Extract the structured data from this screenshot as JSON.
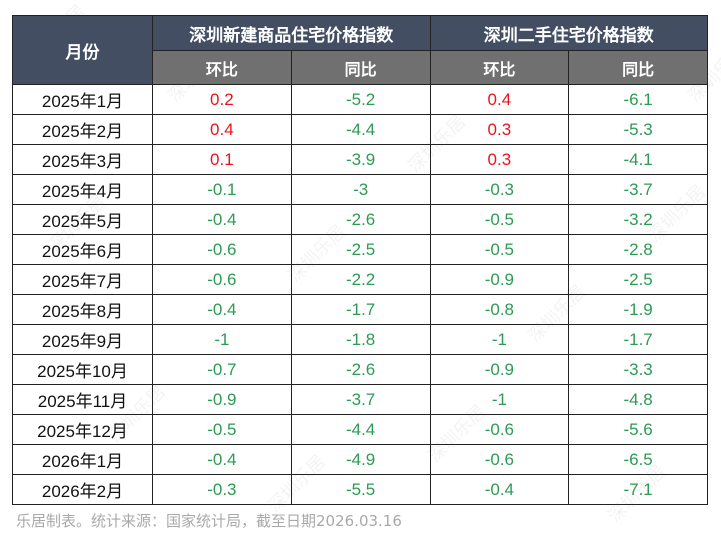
{
  "table": {
    "month_header": "月份",
    "groups": [
      {
        "title": "深圳新建商品住宅价格指数",
        "sub": [
          "环比",
          "同比"
        ]
      },
      {
        "title": "深圳二手住宅价格指数",
        "sub": [
          "环比",
          "同比"
        ]
      }
    ],
    "rows": [
      {
        "month": "2025年1月",
        "new_mom": "0.2",
        "new_yoy": "-5.2",
        "used_mom": "0.4",
        "used_yoy": "-6.1"
      },
      {
        "month": "2025年2月",
        "new_mom": "0.4",
        "new_yoy": "-4.4",
        "used_mom": "0.3",
        "used_yoy": "-5.3"
      },
      {
        "month": "2025年3月",
        "new_mom": "0.1",
        "new_yoy": "-3.9",
        "used_mom": "0.3",
        "used_yoy": "-4.1"
      },
      {
        "month": "2025年4月",
        "new_mom": "-0.1",
        "new_yoy": "-3",
        "used_mom": "-0.3",
        "used_yoy": "-3.7"
      },
      {
        "month": "2025年5月",
        "new_mom": "-0.4",
        "new_yoy": "-2.6",
        "used_mom": "-0.5",
        "used_yoy": "-3.2"
      },
      {
        "month": "2025年6月",
        "new_mom": "-0.6",
        "new_yoy": "-2.5",
        "used_mom": "-0.5",
        "used_yoy": "-2.8"
      },
      {
        "month": "2025年7月",
        "new_mom": "-0.6",
        "new_yoy": "-2.2",
        "used_mom": "-0.9",
        "used_yoy": "-2.5"
      },
      {
        "month": "2025年8月",
        "new_mom": "-0.4",
        "new_yoy": "-1.7",
        "used_mom": "-0.8",
        "used_yoy": "-1.9"
      },
      {
        "month": "2025年9月",
        "new_mom": "-1",
        "new_yoy": "-1.8",
        "used_mom": "-1",
        "used_yoy": "-1.7"
      },
      {
        "month": "2025年10月",
        "new_mom": "-0.7",
        "new_yoy": "-2.6",
        "used_mom": "-0.9",
        "used_yoy": "-3.3"
      },
      {
        "month": "2025年11月",
        "new_mom": "-0.9",
        "new_yoy": "-3.7",
        "used_mom": "-1",
        "used_yoy": "-4.8"
      },
      {
        "month": "2025年12月",
        "new_mom": "-0.5",
        "new_yoy": "-4.4",
        "used_mom": "-0.6",
        "used_yoy": "-5.6"
      },
      {
        "month": "2026年1月",
        "new_mom": "-0.4",
        "new_yoy": "-4.9",
        "used_mom": "-0.6",
        "used_yoy": "-6.5"
      },
      {
        "month": "2026年2月",
        "new_mom": "-0.3",
        "new_yoy": "-5.5",
        "used_mom": "-0.4",
        "used_yoy": "-7.1"
      }
    ]
  },
  "footer": "乐居制表。统计来源：国家统计局，截至日期2026.03.16",
  "watermark": "深圳乐居",
  "colors": {
    "header_dark": "#434e63",
    "header_sub": "#707070",
    "positive": "#e8141c",
    "negative": "#2e9a54"
  }
}
